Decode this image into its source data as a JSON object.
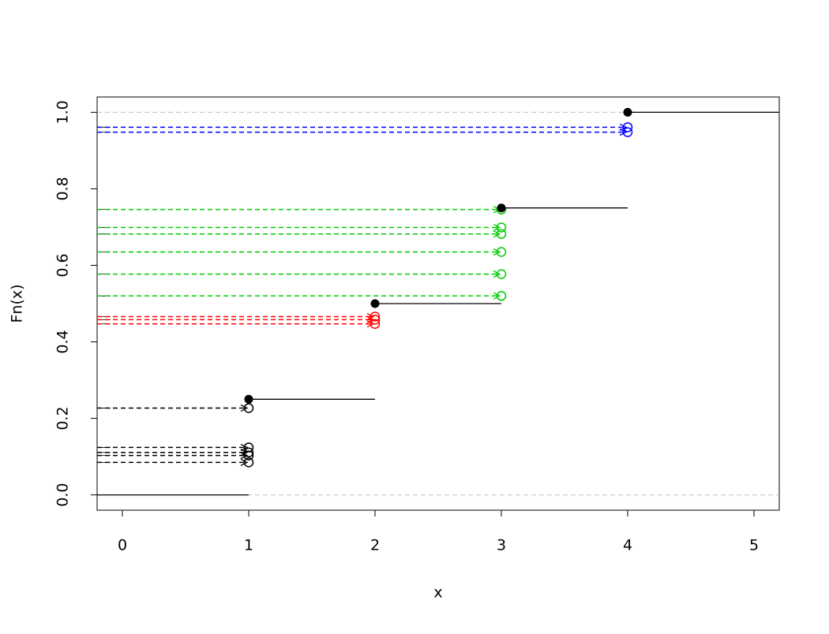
{
  "chart_data": {
    "type": "step",
    "xlabel": "x",
    "ylabel": "Fn(x)",
    "xlim": [
      -0.2,
      5.2
    ],
    "ylim": [
      -0.04,
      1.04
    ],
    "xticks": [
      0,
      1,
      2,
      3,
      4,
      5
    ],
    "yticks": [
      {
        "value": 0,
        "label": "0.0"
      },
      0.2,
      0.4,
      0.6,
      0.8,
      {
        "value": 1,
        "label": "1.0"
      }
    ],
    "hlines": [
      0,
      1
    ],
    "hline_color": "#bebebe",
    "step": {
      "color": "#000000",
      "start": 0,
      "x": [
        1,
        2,
        3,
        4
      ],
      "values": [
        0.25,
        0.5,
        0.75,
        1
      ]
    },
    "series": [
      {
        "color": "#000000",
        "x": [
          1,
          1,
          1,
          1,
          1
        ],
        "values": [
          0.227,
          0.124,
          0.111,
          0.103,
          0.085
        ]
      },
      {
        "color": "#ff0000",
        "x": [
          2,
          2,
          2
        ],
        "values": [
          0.466,
          0.458,
          0.447
        ]
      },
      {
        "color": "#00cd00",
        "x": [
          3,
          3,
          3,
          3,
          3,
          3
        ],
        "values": [
          0.746,
          0.699,
          0.682,
          0.635,
          0.577,
          0.52
        ]
      },
      {
        "color": "#0000ff",
        "x": [
          4,
          4
        ],
        "values": [
          0.961,
          0.948
        ]
      }
    ]
  }
}
